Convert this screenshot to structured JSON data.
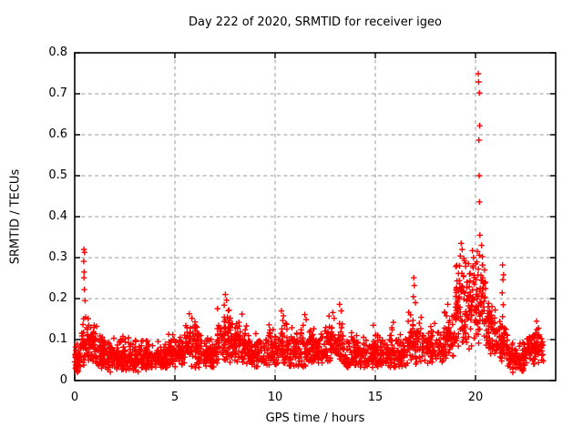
{
  "chart_data": {
    "type": "scatter",
    "title": "Day 222 of 2020, SRMTID for receiver igeo",
    "xlabel": "GPS time / hours",
    "ylabel": "SRMTID / TECUs",
    "xlim": [
      0,
      24
    ],
    "ylim": [
      0,
      0.8
    ],
    "xticks": {
      "values": [
        0,
        5,
        10,
        15,
        20
      ],
      "labels": [
        "0",
        "5",
        "10",
        "15",
        "20"
      ]
    },
    "yticks": {
      "values": [
        0,
        0.1,
        0.2,
        0.3,
        0.4,
        0.5,
        0.6,
        0.7,
        0.8
      ],
      "labels": [
        "0",
        "0.1",
        "0.2",
        "0.3",
        "0.4",
        "0.5",
        "0.6",
        "0.7",
        "0.8"
      ]
    },
    "grid": true,
    "grid_style": "dashed",
    "legend": "none",
    "colors": {
      "marker": "#ff0000",
      "grid": "#9a9a9a",
      "axis": "#000000",
      "background": "#ffffff"
    },
    "marker": "plus",
    "series": [
      {
        "name": "SRMTID",
        "seed": 222,
        "density_bins": [
          [
            0.0,
            0.35,
            45,
            0.02,
            0.1,
            1.4
          ],
          [
            0.35,
            0.7,
            45,
            0.03,
            0.17,
            1.1
          ],
          [
            0.7,
            1.1,
            50,
            0.04,
            0.15,
            1.3
          ],
          [
            1.1,
            1.6,
            55,
            0.03,
            0.13,
            1.4
          ],
          [
            1.6,
            2.2,
            65,
            0.02,
            0.12,
            1.4
          ],
          [
            2.2,
            3.0,
            85,
            0.02,
            0.11,
            1.4
          ],
          [
            3.0,
            3.8,
            85,
            0.02,
            0.11,
            1.4
          ],
          [
            3.8,
            4.6,
            85,
            0.03,
            0.1,
            1.4
          ],
          [
            4.6,
            5.4,
            85,
            0.03,
            0.12,
            1.4
          ],
          [
            5.4,
            6.2,
            85,
            0.03,
            0.15,
            1.3
          ],
          [
            6.2,
            7.1,
            90,
            0.03,
            0.12,
            1.4
          ],
          [
            7.1,
            7.9,
            80,
            0.04,
            0.19,
            1.3
          ],
          [
            7.9,
            8.7,
            80,
            0.04,
            0.15,
            1.3
          ],
          [
            8.7,
            9.6,
            90,
            0.03,
            0.12,
            1.4
          ],
          [
            9.6,
            10.6,
            95,
            0.03,
            0.15,
            1.4
          ],
          [
            10.6,
            11.6,
            100,
            0.03,
            0.14,
            1.4
          ],
          [
            11.6,
            12.6,
            100,
            0.04,
            0.14,
            1.4
          ],
          [
            12.6,
            13.4,
            80,
            0.04,
            0.16,
            1.3
          ],
          [
            13.4,
            14.4,
            95,
            0.03,
            0.12,
            1.4
          ],
          [
            14.4,
            15.5,
            100,
            0.03,
            0.12,
            1.4
          ],
          [
            15.5,
            16.6,
            100,
            0.03,
            0.13,
            1.4
          ],
          [
            16.6,
            17.3,
            65,
            0.04,
            0.17,
            1.3
          ],
          [
            17.3,
            18.4,
            90,
            0.04,
            0.14,
            1.4
          ],
          [
            18.4,
            19.0,
            65,
            0.05,
            0.18,
            1.2
          ],
          [
            19.0,
            19.7,
            90,
            0.06,
            0.31,
            1.0
          ],
          [
            19.7,
            20.5,
            100,
            0.08,
            0.32,
            1.0
          ],
          [
            20.5,
            21.0,
            55,
            0.05,
            0.2,
            1.2
          ],
          [
            21.0,
            21.6,
            60,
            0.04,
            0.15,
            1.3
          ],
          [
            21.6,
            22.5,
            85,
            0.02,
            0.1,
            1.4
          ],
          [
            22.5,
            23.4,
            85,
            0.04,
            0.13,
            1.4
          ]
        ],
        "peak_points": [
          [
            0.46,
            0.32
          ],
          [
            0.49,
            0.313
          ],
          [
            0.45,
            0.291
          ],
          [
            0.47,
            0.265
          ],
          [
            0.46,
            0.251
          ],
          [
            0.48,
            0.222
          ],
          [
            0.52,
            0.195
          ],
          [
            5.72,
            0.163
          ],
          [
            5.85,
            0.152
          ],
          [
            6.0,
            0.143
          ],
          [
            7.52,
            0.21
          ],
          [
            7.58,
            0.196
          ],
          [
            7.46,
            0.184
          ],
          [
            7.7,
            0.172
          ],
          [
            8.35,
            0.162
          ],
          [
            10.32,
            0.17
          ],
          [
            10.42,
            0.158
          ],
          [
            10.38,
            0.147
          ],
          [
            11.48,
            0.161
          ],
          [
            11.55,
            0.149
          ],
          [
            12.88,
            0.166
          ],
          [
            12.95,
            0.152
          ],
          [
            13.22,
            0.186
          ],
          [
            13.3,
            0.17
          ],
          [
            14.9,
            0.135
          ],
          [
            15.9,
            0.142
          ],
          [
            16.92,
            0.251
          ],
          [
            16.95,
            0.232
          ],
          [
            16.9,
            0.205
          ],
          [
            17.0,
            0.19
          ],
          [
            18.62,
            0.186
          ],
          [
            19.28,
            0.335
          ],
          [
            19.33,
            0.32
          ],
          [
            19.24,
            0.304
          ],
          [
            19.42,
            0.298
          ],
          [
            19.5,
            0.287
          ],
          [
            19.2,
            0.28
          ],
          [
            19.9,
            0.3
          ],
          [
            20.0,
            0.285
          ],
          [
            20.14,
            0.749
          ],
          [
            20.16,
            0.729
          ],
          [
            20.19,
            0.702
          ],
          [
            20.21,
            0.622
          ],
          [
            20.17,
            0.587
          ],
          [
            20.18,
            0.5
          ],
          [
            20.2,
            0.436
          ],
          [
            20.22,
            0.355
          ],
          [
            20.3,
            0.33
          ],
          [
            20.45,
            0.27
          ],
          [
            20.5,
            0.24
          ],
          [
            21.35,
            0.282
          ],
          [
            21.37,
            0.246
          ],
          [
            21.33,
            0.214
          ],
          [
            21.38,
            0.185
          ],
          [
            21.35,
            0.156
          ],
          [
            21.4,
            0.258
          ],
          [
            23.05,
            0.145
          ],
          [
            23.15,
            0.128
          ]
        ]
      }
    ]
  }
}
